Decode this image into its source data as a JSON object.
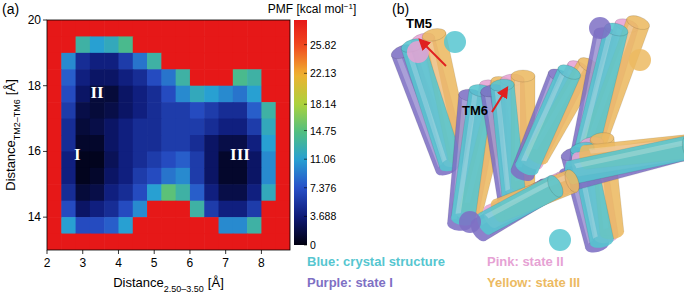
{
  "chart_data": {
    "type": "heatmap",
    "title": "(a)",
    "x_label": "Distance",
    "x_label_sub": "2.50–3.50",
    "x_label_unit": "[Å]",
    "y_label": "Distance",
    "y_label_sub": "TM2–TM6",
    "y_label_unit": "[Å]",
    "xlim": [
      2,
      8.8
    ],
    "ylim": [
      13,
      20
    ],
    "xticks": [
      2,
      3,
      4,
      5,
      6,
      7,
      8
    ],
    "yticks": [
      14,
      16,
      18,
      20
    ],
    "x": [
      2.2,
      2.6,
      3.0,
      3.4,
      3.8,
      4.2,
      4.6,
      5.0,
      5.4,
      5.8,
      6.2,
      6.6,
      7.0,
      7.4,
      7.8,
      8.2,
      8.6
    ],
    "y": [
      19.75,
      19.25,
      18.75,
      18.25,
      17.75,
      17.25,
      16.75,
      16.25,
      15.75,
      15.25,
      14.75,
      14.25,
      13.75,
      13.25
    ],
    "cells": [
      [
        29,
        29,
        29,
        29,
        29,
        29,
        29,
        29,
        29,
        29,
        29,
        29,
        29,
        29,
        29,
        29,
        29
      ],
      [
        29,
        29,
        13,
        11,
        12,
        14,
        29,
        29,
        29,
        29,
        29,
        29,
        29,
        29,
        29,
        29,
        29
      ],
      [
        29,
        10,
        5,
        4,
        4,
        6,
        9,
        13,
        29,
        29,
        29,
        29,
        29,
        29,
        29,
        29,
        29
      ],
      [
        29,
        8,
        4,
        3,
        3,
        4,
        5,
        7,
        9,
        13,
        29,
        29,
        29,
        14,
        13,
        29,
        29
      ],
      [
        29,
        7,
        3,
        1.5,
        1.5,
        3,
        4,
        5,
        7,
        10,
        12,
        11,
        10,
        9,
        11,
        29,
        29
      ],
      [
        29,
        6,
        2,
        1.5,
        2,
        3,
        4,
        5,
        6,
        6,
        7,
        6,
        5,
        5,
        8,
        13,
        29
      ],
      [
        29,
        5,
        1.5,
        2,
        3,
        4,
        5,
        5,
        6,
        6,
        6,
        5,
        4,
        4,
        6,
        12,
        29
      ],
      [
        29,
        5,
        1,
        1,
        3,
        4,
        5,
        5,
        6,
        6,
        5,
        3,
        2,
        2,
        4,
        11,
        29
      ],
      [
        29,
        4,
        0.5,
        0.5,
        2.5,
        4,
        5,
        6,
        7,
        8,
        6,
        3,
        1,
        1,
        3,
        10,
        29
      ],
      [
        29,
        4,
        0.5,
        1,
        3,
        4,
        6,
        7,
        9,
        10,
        6,
        3,
        1,
        1,
        3,
        10,
        29
      ],
      [
        29,
        5,
        1.5,
        2,
        4,
        5,
        7,
        11,
        15,
        13,
        8,
        4,
        2,
        2,
        4,
        12,
        29
      ],
      [
        29,
        7,
        3,
        4,
        5,
        7,
        10,
        29,
        29,
        29,
        13,
        6,
        4,
        4,
        6,
        29,
        29
      ],
      [
        29,
        11,
        7,
        7,
        8,
        11,
        29,
        29,
        29,
        29,
        29,
        29,
        10,
        10,
        13,
        29,
        29
      ],
      [
        29,
        29,
        29,
        29,
        29,
        29,
        29,
        29,
        29,
        29,
        29,
        29,
        29,
        29,
        29,
        29,
        29
      ]
    ],
    "colorbar": {
      "label": "PMF [kcal mol",
      "label_sup": "−1",
      "label_end": "]",
      "range": [
        0,
        29
      ],
      "ticks": [
        0,
        3.688,
        7.376,
        11.06,
        14.75,
        18.14,
        22.13,
        25.82
      ]
    },
    "annotations": [
      {
        "text": "I",
        "x": 2.85,
        "y": 15.9
      },
      {
        "text": "II",
        "x": 3.4,
        "y": 17.8
      },
      {
        "text": "III",
        "x": 7.4,
        "y": 15.9
      }
    ]
  },
  "structure": {
    "title": "(b)",
    "helix_labels": [
      {
        "text": "TM5"
      },
      {
        "text": "TM6"
      }
    ],
    "legend": [
      {
        "text": "Blue: crystal structure",
        "color": "#56c6d0"
      },
      {
        "text": "Purple: state I",
        "color": "#7e70c4"
      },
      {
        "text": "Pink: state II",
        "color": "#e6a2d4"
      },
      {
        "text": "Yellow: state III",
        "color": "#ecba62"
      }
    ]
  }
}
